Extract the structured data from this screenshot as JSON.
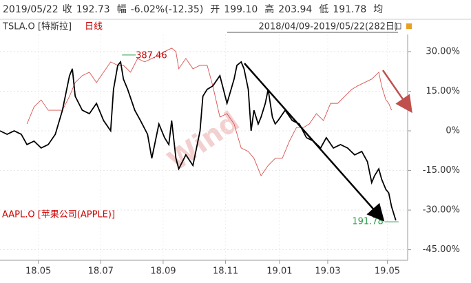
{
  "header": {
    "date": "2019/05/22",
    "quotes": [
      {
        "label": "收",
        "value": "192.73"
      },
      {
        "label": "幅",
        "value": "-6.02%(-12.35)"
      },
      {
        "label": "开",
        "value": "199.10"
      },
      {
        "label": "高",
        "value": "203.94"
      },
      {
        "label": "低",
        "value": "191.78"
      }
    ],
    "extra": "均",
    "period": "日线",
    "range": "2018/04/09-2019/05/22(282日)"
  },
  "chart_data": {
    "type": "line",
    "watermark": "Wind",
    "annotations": [
      "387.46",
      "191.78"
    ],
    "xlim": [
      0,
      282
    ],
    "xticks": [
      {
        "value": 27,
        "label": "18.05"
      },
      {
        "value": 71,
        "label": "18.07"
      },
      {
        "value": 115,
        "label": "18.09"
      },
      {
        "value": 159,
        "label": "18.11"
      },
      {
        "value": 197,
        "label": "19.01"
      },
      {
        "value": 231,
        "label": "19.03"
      },
      {
        "value": 273,
        "label": "19.05"
      }
    ],
    "ylim": [
      -49,
      36.5
    ],
    "yticks": [
      {
        "value": 30,
        "label": "30.00%"
      },
      {
        "value": 15,
        "label": "15.00%"
      },
      {
        "value": 0,
        "label": "0%"
      },
      {
        "value": -15,
        "label": "-15.00%"
      },
      {
        "value": -30,
        "label": "-30.00%"
      },
      {
        "value": -45,
        "label": "-45.00%"
      }
    ],
    "grid": true,
    "series": [
      {
        "name": "TSLA.O [特斯拉]",
        "color": "#000000",
        "x": [
          0,
          5,
          10,
          15,
          19,
          24,
          29,
          34,
          39,
          44,
          49,
          51,
          53,
          58,
          63,
          68,
          73,
          78,
          80,
          83,
          85,
          87,
          90,
          95,
          99,
          104,
          107,
          112,
          116,
          119,
          121,
          124,
          126,
          131,
          136,
          141,
          143,
          146,
          150,
          155,
          160,
          165,
          167,
          170,
          172,
          175,
          177,
          179,
          182,
          184,
          187,
          189,
          192,
          194,
          196,
          201,
          206,
          211,
          216,
          221,
          226,
          230,
          235,
          240,
          245,
          250,
          255,
          259,
          262,
          264,
          267,
          269,
          272,
          274,
          276,
          279
        ],
        "values": [
          0,
          -1.3,
          0,
          -1.3,
          -5.2,
          -3.9,
          -6.5,
          -5.2,
          -1.3,
          7.8,
          20.9,
          23.5,
          13.1,
          7.8,
          6.5,
          10.4,
          3.9,
          0,
          15.7,
          24.8,
          26.1,
          19.6,
          15.7,
          7.8,
          3.9,
          -1.3,
          -10.4,
          2.6,
          -2.6,
          -5.2,
          3.9,
          -10.4,
          -14.4,
          -9.1,
          -13.1,
          0,
          13.1,
          15.7,
          17,
          20.9,
          10.4,
          19.6,
          24.8,
          26.1,
          23.5,
          15.7,
          0,
          7.8,
          2.6,
          5.2,
          10.4,
          15.7,
          5.2,
          2.6,
          3.9,
          7.8,
          3.9,
          2.6,
          -2.6,
          -3.9,
          -6.5,
          -2.6,
          -6.5,
          -5.2,
          -6.5,
          -9.1,
          -7.8,
          -11.7,
          -19.6,
          -17,
          -14.4,
          -18.3,
          -22.2,
          -23.5,
          -28.7,
          -33.9
        ]
      },
      {
        "name": "AAPL.O [苹果公司(APPLE)]",
        "color": "#d9534f",
        "x": [
          19,
          24,
          29,
          34,
          39,
          44,
          49,
          53,
          58,
          63,
          68,
          73,
          78,
          83,
          87,
          92,
          97,
          102,
          107,
          112,
          116,
          121,
          124,
          126,
          131,
          136,
          141,
          146,
          150,
          155,
          160,
          165,
          170,
          175,
          179,
          184,
          189,
          194,
          199,
          204,
          209,
          214,
          218,
          223,
          228,
          233,
          238,
          243,
          248,
          252,
          257,
          262,
          267,
          269,
          272,
          274,
          276
        ],
        "values": [
          2.6,
          9.1,
          11.7,
          7.8,
          7.8,
          7.8,
          13.1,
          18.3,
          20.9,
          22.2,
          18.3,
          22.2,
          26.1,
          24.8,
          24.8,
          22.2,
          27.4,
          26.1,
          27.4,
          28.7,
          30,
          31.3,
          30,
          23.5,
          27.4,
          23.5,
          24.8,
          24.8,
          17,
          5.2,
          6.5,
          2.6,
          -6.5,
          -7.8,
          -10.4,
          -17,
          -13.1,
          -10.4,
          -10.4,
          -3.9,
          1.3,
          1.3,
          2.6,
          6.5,
          3.9,
          10.4,
          10.4,
          13.1,
          15.7,
          17,
          18.3,
          19.6,
          22.2,
          17,
          11.7,
          10.4,
          7.8
        ]
      }
    ]
  }
}
